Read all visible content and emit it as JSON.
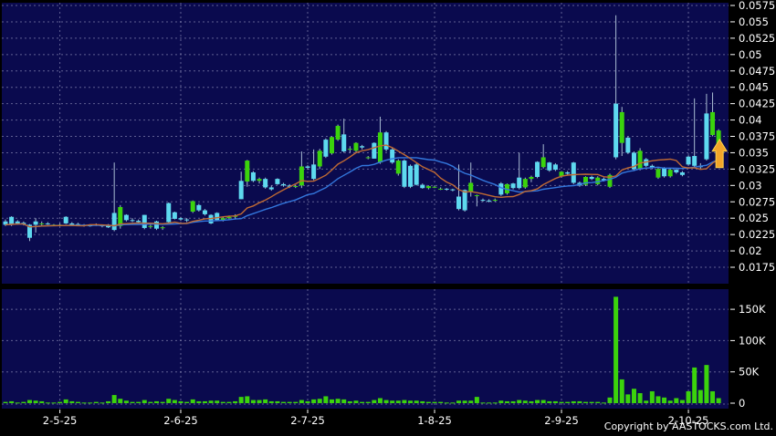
{
  "meta": {
    "copyright": "Copyright by AASTOCKS.com Ltd."
  },
  "colors": {
    "background": "#000000",
    "panel": "#0a0a4e",
    "grid": "#8f8fb8",
    "up_candle": "#3bd30c",
    "down_candle": "#5ed9ef",
    "wick": "#a9bdd2",
    "ma_fast": "#c06a33",
    "ma_slow": "#3377dd",
    "volume_bar": "#3bd30c",
    "axis_text": "#ffffff",
    "marker_arrow": "#f2a52a",
    "marker_arrow_edge": "#ffd34d"
  },
  "price_axis": {
    "ticks": [
      "0.0575",
      "0.055",
      "0.0525",
      "0.05",
      "0.0475",
      "0.045",
      "0.0425",
      "0.04",
      "0.0375",
      "0.035",
      "0.0325",
      "0.03",
      "0.0275",
      "0.025",
      "0.0225",
      "0.02",
      "0.0175"
    ],
    "max": 0.0575,
    "min": 0.0175
  },
  "volume_axis": {
    "ticks": [
      {
        "label": "150K",
        "value": 150
      },
      {
        "label": "100K",
        "value": 100
      },
      {
        "label": "50K",
        "value": 50
      },
      {
        "label": "0",
        "value": 0
      }
    ]
  },
  "x_axis": {
    "labels": [
      {
        "text": "2-5-25",
        "index": 9
      },
      {
        "text": "2-6-25",
        "index": 29
      },
      {
        "text": "2-7-25",
        "index": 50
      },
      {
        "text": "1-8-25",
        "index": 71
      },
      {
        "text": "2-9-25",
        "index": 92
      },
      {
        "text": "2-10-25",
        "index": 113
      }
    ]
  },
  "chart_data": {
    "type": "candlestick+volume",
    "legend_position": "none",
    "grid": true,
    "series": [
      {
        "name": "MA fast (orange)",
        "kind": "sma",
        "period": 10
      },
      {
        "name": "MA slow (blue)",
        "kind": "sma",
        "period": 20
      }
    ],
    "marker": {
      "icon": "up-arrow-icon",
      "at_last_candle": true,
      "price": 0.033
    },
    "candles_format": [
      "open",
      "high",
      "low",
      "close",
      "volume_K"
    ],
    "candles": [
      [
        0.0245,
        0.0248,
        0.0238,
        0.024,
        2
      ],
      [
        0.0252,
        0.0253,
        0.0238,
        0.0241,
        3
      ],
      [
        0.0245,
        0.0247,
        0.024,
        0.0242,
        1
      ],
      [
        0.0243,
        0.0245,
        0.0239,
        0.0241,
        2
      ],
      [
        0.024,
        0.0241,
        0.0215,
        0.022,
        5
      ],
      [
        0.0245,
        0.025,
        0.0228,
        0.024,
        4
      ],
      [
        0.0242,
        0.0245,
        0.0239,
        0.0242,
        3
      ],
      [
        0.0242,
        0.0244,
        0.024,
        0.0241,
        1
      ],
      [
        0.024,
        0.0241,
        0.0239,
        0.024,
        1
      ],
      [
        0.024,
        0.0242,
        0.0238,
        0.024,
        2
      ],
      [
        0.0252,
        0.0253,
        0.0241,
        0.0242,
        6
      ],
      [
        0.0242,
        0.0244,
        0.0239,
        0.024,
        3
      ],
      [
        0.0241,
        0.0243,
        0.0238,
        0.0239,
        2
      ],
      [
        0.024,
        0.0241,
        0.0237,
        0.0239,
        1
      ],
      [
        0.0239,
        0.024,
        0.0237,
        0.0238,
        1
      ],
      [
        0.024,
        0.0242,
        0.0238,
        0.024,
        2
      ],
      [
        0.0239,
        0.024,
        0.0236,
        0.0238,
        1
      ],
      [
        0.024,
        0.0241,
        0.0235,
        0.0236,
        3
      ],
      [
        0.0258,
        0.0335,
        0.023,
        0.0232,
        13
      ],
      [
        0.0238,
        0.027,
        0.0234,
        0.0267,
        7
      ],
      [
        0.0255,
        0.0256,
        0.0245,
        0.0247,
        4
      ],
      [
        0.0247,
        0.025,
        0.0244,
        0.0246,
        2
      ],
      [
        0.0246,
        0.0248,
        0.0242,
        0.0244,
        2
      ],
      [
        0.0255,
        0.0255,
        0.0233,
        0.0235,
        5
      ],
      [
        0.0237,
        0.024,
        0.0234,
        0.0238,
        2
      ],
      [
        0.0245,
        0.0246,
        0.0232,
        0.0234,
        3
      ],
      [
        0.0235,
        0.0238,
        0.0232,
        0.0236,
        2
      ],
      [
        0.0273,
        0.0274,
        0.0243,
        0.0244,
        7
      ],
      [
        0.0259,
        0.026,
        0.0248,
        0.0249,
        5
      ],
      [
        0.025,
        0.0252,
        0.0246,
        0.0248,
        3
      ],
      [
        0.0248,
        0.025,
        0.0244,
        0.0247,
        2
      ],
      [
        0.026,
        0.0277,
        0.0258,
        0.0276,
        6
      ],
      [
        0.027,
        0.0272,
        0.026,
        0.0262,
        3
      ],
      [
        0.0262,
        0.0264,
        0.0254,
        0.0256,
        3
      ],
      [
        0.0255,
        0.0256,
        0.0241,
        0.0242,
        4
      ],
      [
        0.0258,
        0.0259,
        0.0246,
        0.0247,
        4
      ],
      [
        0.0247,
        0.0252,
        0.0245,
        0.025,
        2
      ],
      [
        0.025,
        0.0254,
        0.0248,
        0.0252,
        2
      ],
      [
        0.0252,
        0.0256,
        0.0248,
        0.0254,
        3
      ],
      [
        0.0307,
        0.0321,
        0.0279,
        0.0279,
        10
      ],
      [
        0.0306,
        0.0339,
        0.0298,
        0.0338,
        11
      ],
      [
        0.032,
        0.0322,
        0.0305,
        0.0307,
        5
      ],
      [
        0.0307,
        0.0312,
        0.0303,
        0.031,
        5
      ],
      [
        0.031,
        0.0312,
        0.0295,
        0.0297,
        6
      ],
      [
        0.0297,
        0.03,
        0.0292,
        0.0294,
        3
      ],
      [
        0.031,
        0.0311,
        0.0301,
        0.0302,
        3
      ],
      [
        0.0302,
        0.0304,
        0.0298,
        0.03,
        2
      ],
      [
        0.03,
        0.0302,
        0.0296,
        0.0298,
        2
      ],
      [
        0.0298,
        0.0301,
        0.0296,
        0.0299,
        2
      ],
      [
        0.03,
        0.0352,
        0.0296,
        0.0329,
        5
      ],
      [
        0.0329,
        0.0331,
        0.0324,
        0.0327,
        3
      ],
      [
        0.0332,
        0.0355,
        0.0308,
        0.031,
        6
      ],
      [
        0.0329,
        0.0356,
        0.0325,
        0.0353,
        7
      ],
      [
        0.037,
        0.0372,
        0.0342,
        0.0344,
        11
      ],
      [
        0.0349,
        0.0375,
        0.0347,
        0.0374,
        6
      ],
      [
        0.037,
        0.0393,
        0.0368,
        0.0391,
        7
      ],
      [
        0.0378,
        0.0402,
        0.035,
        0.0352,
        6
      ],
      [
        0.0355,
        0.036,
        0.035,
        0.0356,
        3
      ],
      [
        0.0353,
        0.0366,
        0.0351,
        0.0365,
        4
      ],
      [
        0.036,
        0.0362,
        0.0355,
        0.0358,
        2
      ],
      [
        0.0343,
        0.0345,
        0.034,
        0.0343,
        2
      ],
      [
        0.0365,
        0.0366,
        0.0341,
        0.0341,
        5
      ],
      [
        0.0335,
        0.0405,
        0.0333,
        0.0381,
        8
      ],
      [
        0.0381,
        0.0383,
        0.0352,
        0.0355,
        5
      ],
      [
        0.0355,
        0.0357,
        0.0333,
        0.0335,
        4
      ],
      [
        0.0318,
        0.034,
        0.0315,
        0.0338,
        4
      ],
      [
        0.0338,
        0.034,
        0.0296,
        0.0298,
        5
      ],
      [
        0.033,
        0.0332,
        0.0296,
        0.0298,
        4
      ],
      [
        0.0332,
        0.0334,
        0.03,
        0.0301,
        4
      ],
      [
        0.0301,
        0.0303,
        0.0295,
        0.0296,
        3
      ],
      [
        0.0296,
        0.03,
        0.0294,
        0.0299,
        2
      ],
      [
        0.0298,
        0.03,
        0.0296,
        0.0298,
        2
      ],
      [
        0.0295,
        0.0297,
        0.0293,
        0.0295,
        2
      ],
      [
        0.0295,
        0.0296,
        0.0292,
        0.0294,
        1
      ],
      [
        0.0294,
        0.0295,
        0.0291,
        0.0293,
        1
      ],
      [
        0.0283,
        0.0332,
        0.0262,
        0.0264,
        4
      ],
      [
        0.0293,
        0.0294,
        0.026,
        0.0262,
        4
      ],
      [
        0.029,
        0.0335,
        0.0283,
        0.0304,
        4
      ],
      [
        0.0285,
        0.0286,
        0.0268,
        0.0285,
        10
      ],
      [
        0.0278,
        0.028,
        0.0275,
        0.0277,
        1
      ],
      [
        0.0277,
        0.0279,
        0.0274,
        0.0276,
        1
      ],
      [
        0.0277,
        0.028,
        0.0275,
        0.0278,
        1
      ],
      [
        0.0303,
        0.0305,
        0.0284,
        0.0286,
        4
      ],
      [
        0.0288,
        0.0303,
        0.0286,
        0.0302,
        3
      ],
      [
        0.0303,
        0.0304,
        0.0294,
        0.0296,
        3
      ],
      [
        0.0312,
        0.035,
        0.0294,
        0.0296,
        5
      ],
      [
        0.0297,
        0.0312,
        0.0295,
        0.031,
        4
      ],
      [
        0.031,
        0.0315,
        0.0305,
        0.0313,
        3
      ],
      [
        0.0336,
        0.0337,
        0.0311,
        0.0313,
        5
      ],
      [
        0.0328,
        0.0363,
        0.0326,
        0.0343,
        5
      ],
      [
        0.0335,
        0.0336,
        0.0321,
        0.0323,
        3
      ],
      [
        0.0332,
        0.0334,
        0.0322,
        0.0324,
        3
      ],
      [
        0.0314,
        0.0322,
        0.0312,
        0.0321,
        2
      ],
      [
        0.032,
        0.0322,
        0.0316,
        0.0318,
        2
      ],
      [
        0.0335,
        0.0336,
        0.0302,
        0.0304,
        3
      ],
      [
        0.0304,
        0.0306,
        0.0298,
        0.03,
        3
      ],
      [
        0.0301,
        0.0314,
        0.0299,
        0.0313,
        2
      ],
      [
        0.0313,
        0.0315,
        0.0308,
        0.031,
        2
      ],
      [
        0.0302,
        0.0314,
        0.03,
        0.0312,
        2
      ],
      [
        0.031,
        0.0312,
        0.0306,
        0.0308,
        1
      ],
      [
        0.0298,
        0.0318,
        0.0296,
        0.0316,
        9
      ],
      [
        0.0425,
        0.056,
        0.034,
        0.0343,
        170
      ],
      [
        0.0365,
        0.042,
        0.0345,
        0.0412,
        38
      ],
      [
        0.0373,
        0.0375,
        0.0348,
        0.035,
        14
      ],
      [
        0.035,
        0.0352,
        0.0323,
        0.0325,
        23
      ],
      [
        0.0325,
        0.0357,
        0.0323,
        0.0353,
        16
      ],
      [
        0.034,
        0.0342,
        0.0328,
        0.033,
        4
      ],
      [
        0.033,
        0.0332,
        0.0325,
        0.0327,
        19
      ],
      [
        0.0312,
        0.0327,
        0.031,
        0.0325,
        11
      ],
      [
        0.0327,
        0.0328,
        0.0312,
        0.0314,
        9
      ],
      [
        0.0314,
        0.0326,
        0.0312,
        0.0324,
        4
      ],
      [
        0.0324,
        0.0325,
        0.0318,
        0.032,
        8
      ],
      [
        0.032,
        0.0322,
        0.0314,
        0.0316,
        5
      ],
      [
        0.0344,
        0.0346,
        0.033,
        0.0332,
        19
      ],
      [
        0.0345,
        0.0433,
        0.0327,
        0.033,
        57
      ],
      [
        0.033,
        0.0334,
        0.0324,
        0.0328,
        21
      ],
      [
        0.041,
        0.044,
        0.0338,
        0.034,
        61
      ],
      [
        0.0377,
        0.0442,
        0.0375,
        0.0412,
        19
      ],
      [
        0.036,
        0.0386,
        0.0358,
        0.0384,
        8
      ]
    ]
  }
}
